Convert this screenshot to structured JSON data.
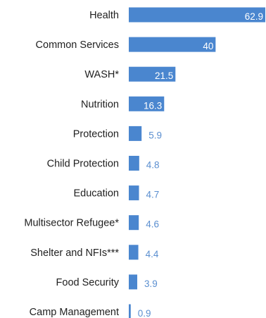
{
  "chart_data": {
    "type": "bar",
    "orientation": "horizontal",
    "title": "",
    "xlabel": "",
    "ylabel": "",
    "categories": [
      "Health",
      "Common Services",
      "WASH*",
      "Nutrition",
      "Protection",
      "Child Protection",
      "Education",
      "Multisector Refugee*",
      "Shelter and NFIs***",
      "Food Security",
      "Camp Management"
    ],
    "values": [
      62.9,
      40,
      21.5,
      16.3,
      5.9,
      4.8,
      4.7,
      4.6,
      4.4,
      3.9,
      0.9
    ],
    "value_labels": [
      "62.9",
      "40",
      "21.5",
      "16.3",
      "5.9",
      "4.8",
      "4.7",
      "4.6",
      "4.4",
      "3.9",
      "0.9"
    ],
    "xlim": [
      0,
      62.9
    ],
    "grid": false,
    "legend": "none",
    "bar_color": "#4a86cf",
    "value_label_color_inside": "#ffffff",
    "value_label_color_outside": "#5b8fd0"
  }
}
